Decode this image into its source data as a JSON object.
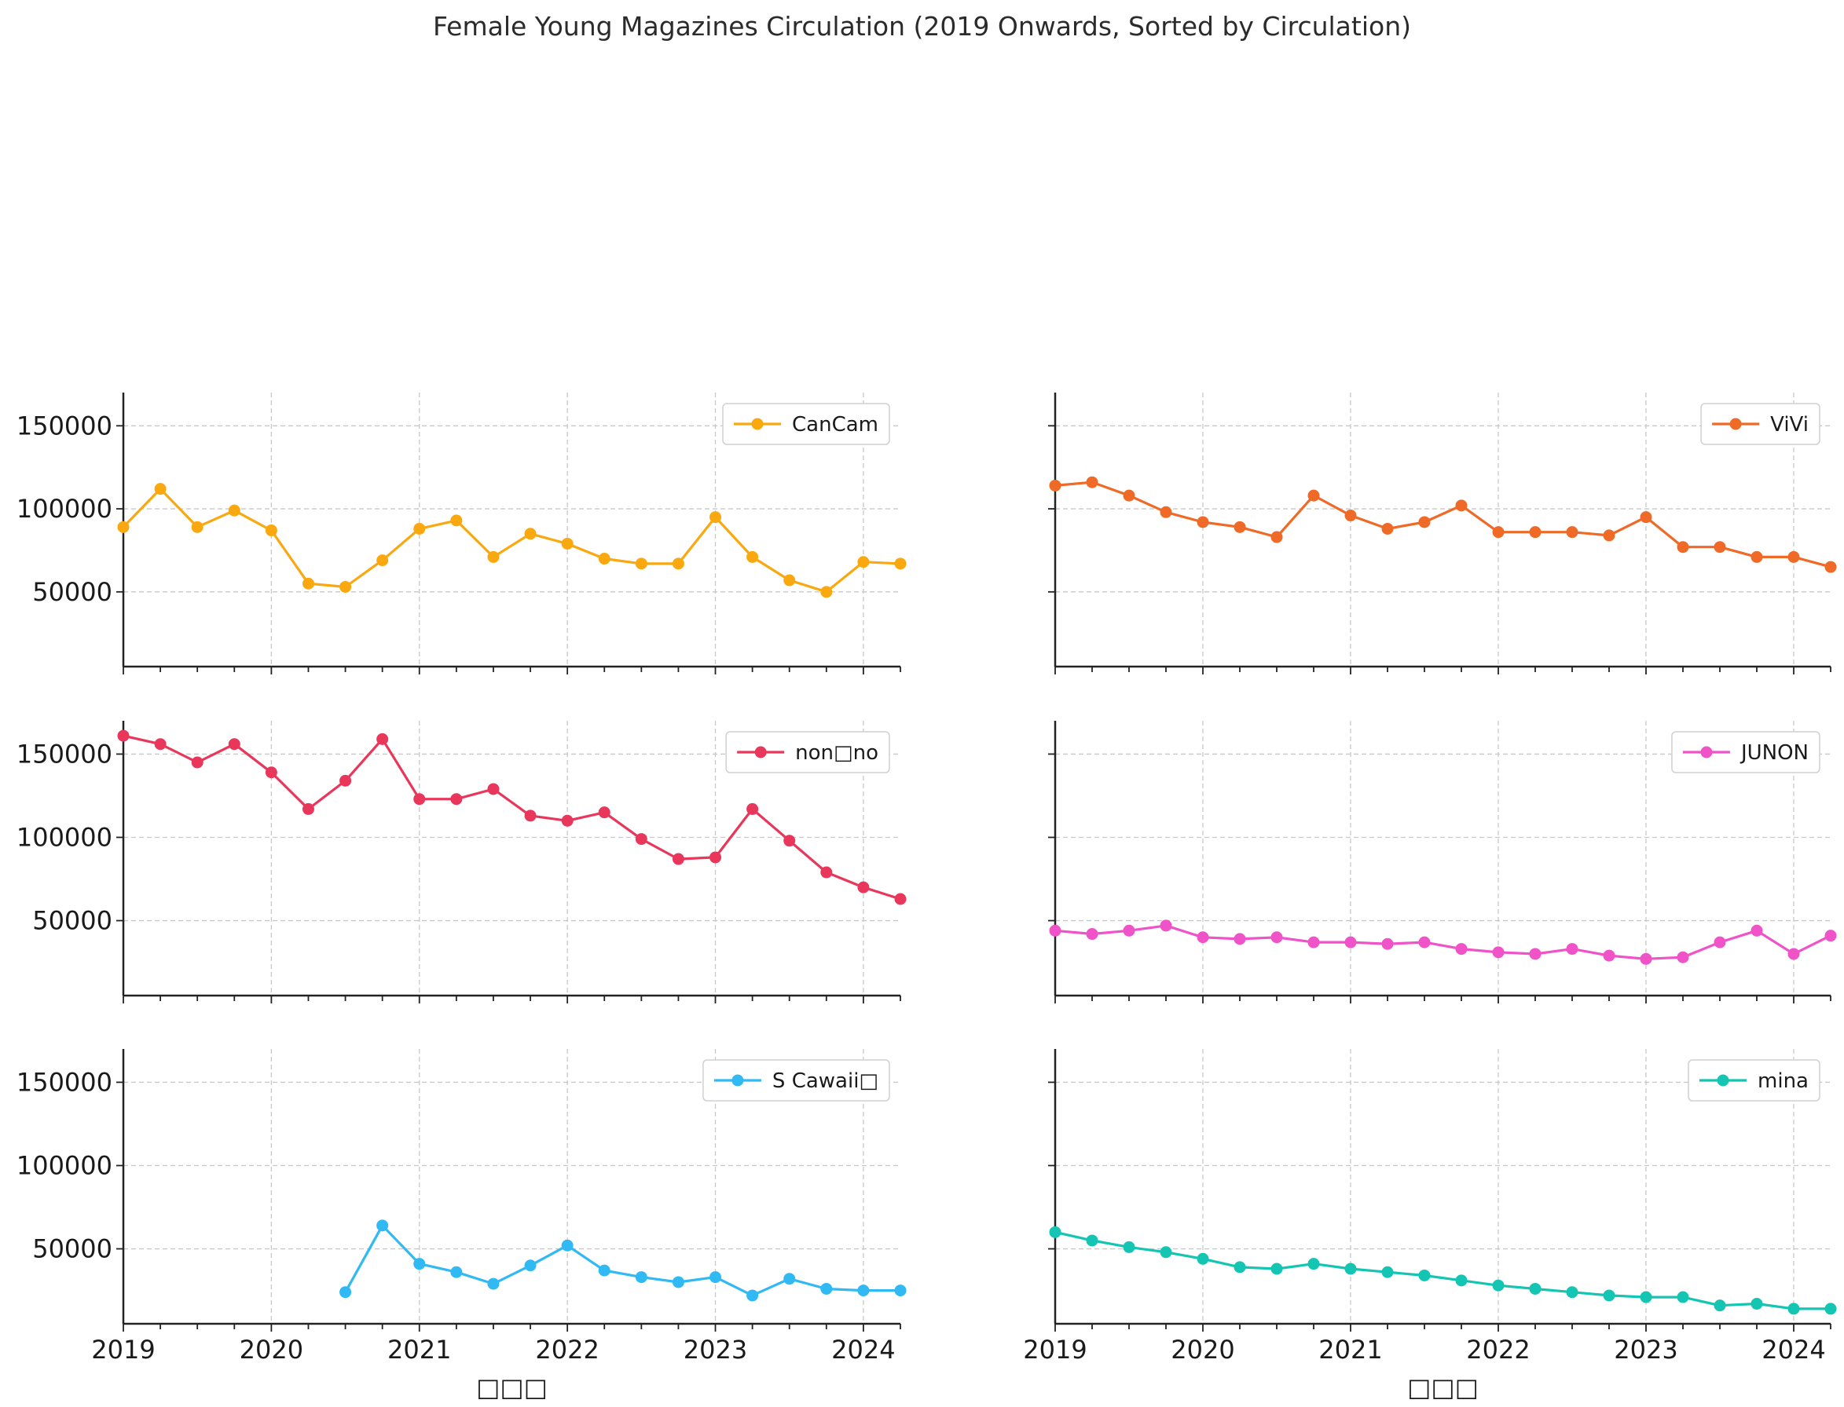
{
  "chart_data": {
    "type": "line",
    "title": "Female Young Magazines Circulation (2019 Onwards, Sorted by Circulation)",
    "xlabel": "□□□",
    "ylabel": "",
    "layout": "3 rows x 2 columns, shared axes",
    "ylim": [
      5000,
      170000
    ],
    "xlim": [
      2019.0,
      2024.25
    ],
    "y_ticks": [
      50000,
      100000,
      150000
    ],
    "x_ticks": [
      "2019",
      "2020",
      "2021",
      "2022",
      "2023",
      "2024"
    ],
    "x": [
      2019.0,
      2019.25,
      2019.5,
      2019.75,
      2020.0,
      2020.25,
      2020.5,
      2020.75,
      2021.0,
      2021.25,
      2021.5,
      2021.75,
      2022.0,
      2022.25,
      2022.5,
      2022.75,
      2023.0,
      2023.25,
      2023.5,
      2023.75,
      2024.0,
      2024.25
    ],
    "grid": true,
    "legend_placement": "top-right",
    "series": [
      {
        "name": "CanCam",
        "color": "#f9a90f",
        "values": [
          89000,
          112000,
          89000,
          99000,
          87000,
          55000,
          53000,
          69000,
          88000,
          93000,
          71000,
          85000,
          79000,
          70000,
          67000,
          67000,
          95000,
          71000,
          57000,
          50000,
          68000,
          67000
        ]
      },
      {
        "name": "ViVi",
        "color": "#ef6a26",
        "values": [
          114000,
          116000,
          108000,
          98000,
          92000,
          89000,
          83000,
          108000,
          96000,
          88000,
          92000,
          102000,
          86000,
          86000,
          86000,
          84000,
          95000,
          77000,
          77000,
          71000,
          71000,
          65000
        ]
      },
      {
        "name": "non□no",
        "color": "#e8375a",
        "values": [
          161000,
          156000,
          145000,
          156000,
          139000,
          117000,
          134000,
          159000,
          123000,
          123000,
          129000,
          113000,
          110000,
          115000,
          99000,
          87000,
          88000,
          117000,
          98000,
          79000,
          70000,
          63000
        ]
      },
      {
        "name": "JUNON",
        "color": "#f052c8",
        "values": [
          44000,
          42000,
          44000,
          47000,
          40000,
          39000,
          40000,
          37000,
          37000,
          36000,
          37000,
          33000,
          31000,
          30000,
          33000,
          29000,
          27000,
          28000,
          37000,
          44000,
          30000,
          41000
        ]
      },
      {
        "name": "S Cawaii□",
        "color": "#31b9f3",
        "values": [
          null,
          null,
          null,
          null,
          null,
          null,
          24000,
          64000,
          41000,
          36000,
          29000,
          40000,
          52000,
          37000,
          33000,
          30000,
          33000,
          22000,
          32000,
          26000,
          25000,
          25000
        ]
      },
      {
        "name": "mina",
        "color": "#13c5b2",
        "values": [
          60000,
          55000,
          51000,
          48000,
          44000,
          39000,
          38000,
          41000,
          38000,
          36000,
          34000,
          31000,
          28000,
          26000,
          24000,
          22000,
          21000,
          21000,
          16000,
          17000,
          14000,
          14000
        ]
      }
    ]
  }
}
